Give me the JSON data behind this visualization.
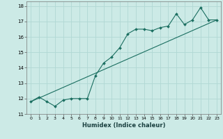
{
  "xlabel": "Humidex (Indice chaleur)",
  "background_color": "#cceae6",
  "grid_color": "#b0d8d4",
  "line_color": "#1a6e60",
  "xlim": [
    -0.5,
    23.5
  ],
  "ylim": [
    11,
    18.3
  ],
  "xticks": [
    0,
    1,
    2,
    3,
    4,
    5,
    6,
    7,
    8,
    9,
    10,
    11,
    12,
    13,
    14,
    15,
    16,
    17,
    18,
    19,
    20,
    21,
    22,
    23
  ],
  "yticks": [
    11,
    12,
    13,
    14,
    15,
    16,
    17,
    18
  ],
  "straight_line_x": [
    0,
    23
  ],
  "straight_line_y": [
    11.8,
    17.1
  ],
  "curve_x": [
    0,
    1,
    2,
    3,
    4,
    5,
    6,
    7,
    8,
    9,
    10,
    11,
    12,
    13,
    14,
    15,
    16,
    17,
    18,
    19,
    20,
    21,
    22,
    23
  ],
  "curve_y": [
    11.8,
    12.1,
    11.8,
    11.5,
    11.9,
    12.0,
    12.0,
    12.0,
    13.5,
    14.3,
    14.7,
    15.3,
    16.2,
    16.5,
    16.5,
    16.4,
    16.6,
    16.7,
    17.5,
    16.8,
    17.1,
    17.9,
    17.1,
    17.1
  ]
}
